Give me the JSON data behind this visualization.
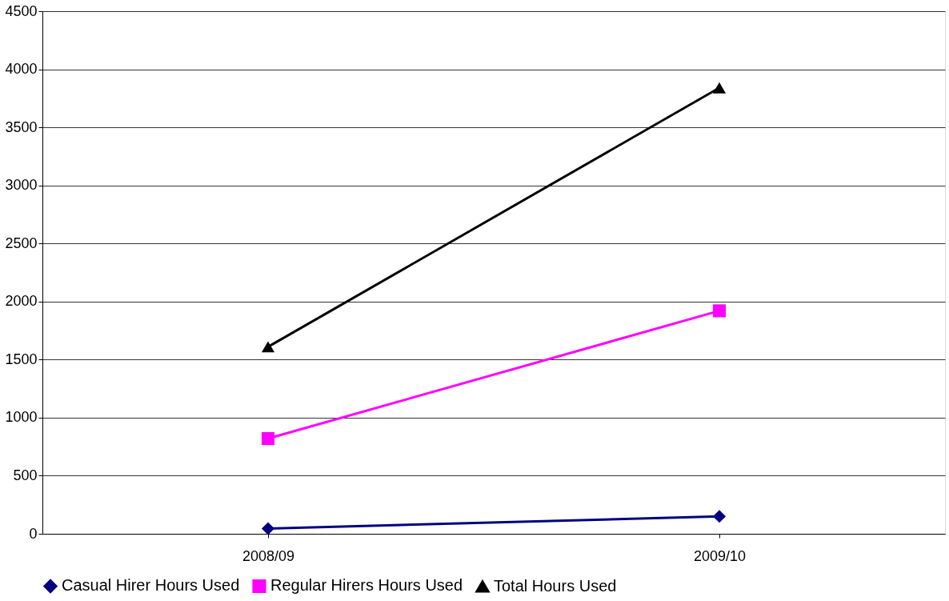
{
  "chart_data": {
    "type": "line",
    "categories": [
      "2008/09",
      "2009/10"
    ],
    "series": [
      {
        "name": "Casual Hirer Hours Used",
        "color": "#000080",
        "marker": "diamond",
        "values": [
          45,
          150
        ]
      },
      {
        "name": "Regular Hirers Hours Used",
        "color": "#ff00ff",
        "marker": "square",
        "values": [
          820,
          1920
        ]
      },
      {
        "name": "Total Hours Used",
        "color": "#000000",
        "marker": "triangle",
        "values": [
          1610,
          3840
        ]
      }
    ],
    "ylim": [
      0,
      4500
    ],
    "yticks": [
      0,
      500,
      1000,
      1500,
      2000,
      2500,
      3000,
      3500,
      4000,
      4500
    ],
    "grid": "y",
    "legend": "bottom",
    "line_style": "solid"
  }
}
